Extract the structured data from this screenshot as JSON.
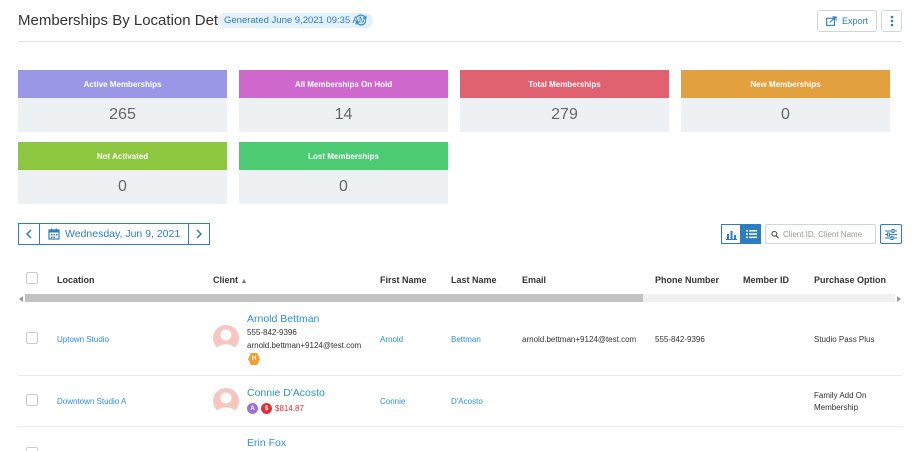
{
  "header": {
    "title": "Memberships By Location Details",
    "generated": "Generated June 9,2021 09:35 AM",
    "export_label": "Export"
  },
  "cards": [
    {
      "label": "Active Memberships",
      "value": "265",
      "color": "#9a98e6"
    },
    {
      "label": "All Memberships On Hold",
      "value": "14",
      "color": "#cf68cc"
    },
    {
      "label": "Total Memberships",
      "value": "279",
      "color": "#e0616f"
    },
    {
      "label": "New Memberships",
      "value": "0",
      "color": "#e3a03f"
    },
    {
      "label": "Not Activated",
      "value": "0",
      "color": "#8dc63f"
    },
    {
      "label": "Lost Memberships",
      "value": "0",
      "color": "#4ccb73"
    }
  ],
  "datebar": {
    "date": "Wednesday, Jun 9, 2021"
  },
  "search": {
    "placeholder": "Client ID, Client Name"
  },
  "table": {
    "columns": [
      "Location",
      "Client",
      "First Name",
      "Last Name",
      "Email",
      "Phone Number",
      "Member ID",
      "Purchase Option"
    ],
    "sort_indicator": "▲",
    "rows": [
      {
        "location": "Uptown Studio",
        "client_name": "Arnold Bettman",
        "client_phone": "555-842-9396",
        "client_email": "arnold.bettman+9124@test.com",
        "badge": "H",
        "first_name": "Arnold",
        "last_name": "Bettman",
        "email": "arnold.bettman+9124@test.com",
        "phone": "555-842-9396",
        "member_id": "",
        "purchase_option": "Studio Pass Plus"
      },
      {
        "location": "Downtown Studio A",
        "client_name": "Connie D'Acosto",
        "badge_a": "A",
        "badge_dollar": "$",
        "balance": "$814.87",
        "first_name": "Connie",
        "last_name": "D'Acosto",
        "email": "",
        "phone": "",
        "member_id": "",
        "purchase_option_line1": "Family Add On",
        "purchase_option_line2": "Membership"
      },
      {
        "client_name": "Erin Fox"
      }
    ]
  },
  "colors": {
    "accent": "#2b7fc1",
    "link": "#2b90d9",
    "balance_red": "#e0303a"
  }
}
